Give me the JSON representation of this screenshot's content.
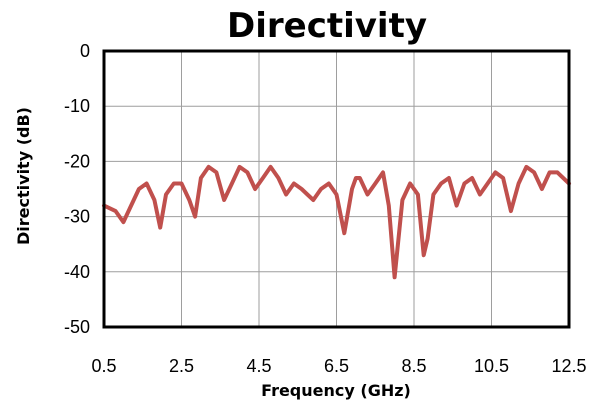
{
  "chart_data": {
    "type": "line",
    "title": "Directivity",
    "xlabel": "Frequency (GHz)",
    "ylabel": "Directivity (dB)",
    "xlim": [
      0.5,
      12.5
    ],
    "ylim": [
      -50,
      0
    ],
    "x_ticks": [
      "0.5",
      "2.5",
      "4.5",
      "6.5",
      "8.5",
      "10.5",
      "12.5"
    ],
    "y_ticks": [
      "0",
      "-10",
      "-20",
      "-30",
      "-40",
      "-50"
    ],
    "grid": true,
    "legend": "none",
    "series": [
      {
        "color": "#c0504d",
        "x": [
          0.5,
          0.8,
          1.0,
          1.2,
          1.4,
          1.6,
          1.8,
          1.95,
          2.1,
          2.3,
          2.5,
          2.7,
          2.85,
          3.0,
          3.2,
          3.4,
          3.6,
          3.8,
          4.0,
          4.2,
          4.4,
          4.6,
          4.8,
          5.0,
          5.2,
          5.4,
          5.6,
          5.75,
          5.9,
          6.1,
          6.3,
          6.5,
          6.7,
          6.9,
          7.0,
          7.1,
          7.3,
          7.5,
          7.7,
          7.85,
          8.0,
          8.2,
          8.4,
          8.6,
          8.75,
          8.85,
          9.0,
          9.2,
          9.4,
          9.6,
          9.8,
          10.0,
          10.2,
          10.4,
          10.6,
          10.8,
          11.0,
          11.2,
          11.4,
          11.6,
          11.8,
          12.0,
          12.2,
          12.5
        ],
        "y": [
          -28,
          -29,
          -31,
          -28,
          -25,
          -24,
          -27,
          -32,
          -26,
          -24,
          -24,
          -27,
          -30,
          -23,
          -21,
          -22,
          -27,
          -24,
          -21,
          -22,
          -25,
          -23,
          -21,
          -23,
          -26,
          -24,
          -25,
          -26,
          -27,
          -25,
          -24,
          -26,
          -33,
          -25,
          -23,
          -23,
          -26,
          -24,
          -22,
          -28,
          -41,
          -27,
          -24,
          -26,
          -37,
          -34,
          -26,
          -24,
          -23,
          -28,
          -24,
          -23,
          -26,
          -24,
          -22,
          -23,
          -29,
          -24,
          -21,
          -22,
          -25,
          -22,
          -22,
          -24
        ]
      }
    ]
  }
}
